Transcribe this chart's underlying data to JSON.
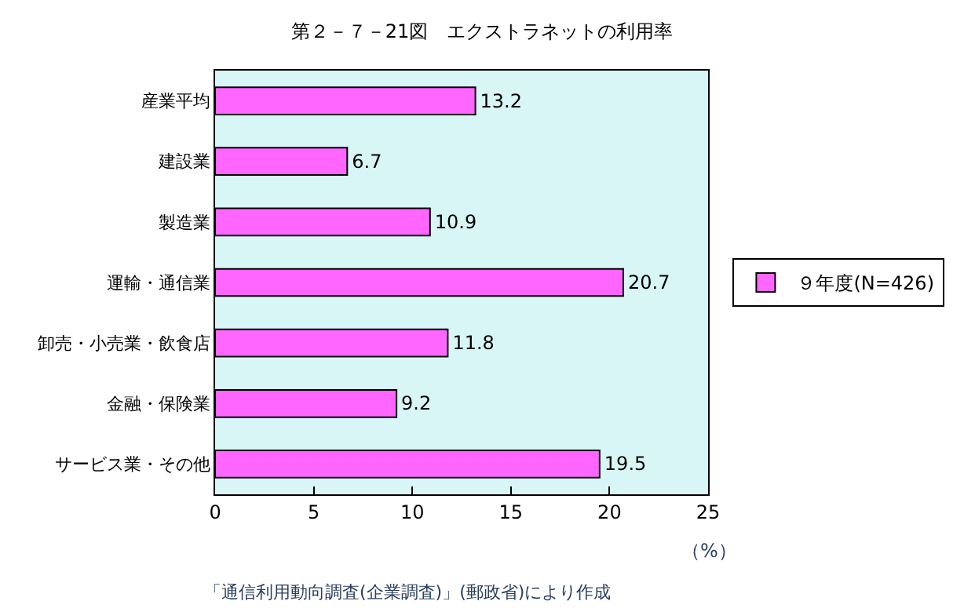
{
  "chart_data": {
    "type": "bar",
    "orientation": "horizontal",
    "title": "第２－７－21図　エクストラネットの利用率",
    "xlabel": "（%）",
    "categories": [
      "産業平均",
      "建設業",
      "製造業",
      "運輸・通信業",
      "卸売・小売業・飲食店",
      "金融・保険業",
      "サービス業・その他"
    ],
    "series": [
      {
        "name": "９年度(N=426)",
        "color": "#ff66ff",
        "values": [
          13.2,
          6.7,
          10.9,
          20.7,
          11.8,
          9.2,
          19.5
        ]
      }
    ],
    "xlim": [
      0,
      25
    ],
    "xticks": [
      0,
      5,
      10,
      15,
      20,
      25
    ],
    "data_labels": true,
    "grid": false,
    "legend": "right",
    "annotations": [
      "「通信利用動向調査(企業調査)」(郵政省)により作成"
    ]
  }
}
